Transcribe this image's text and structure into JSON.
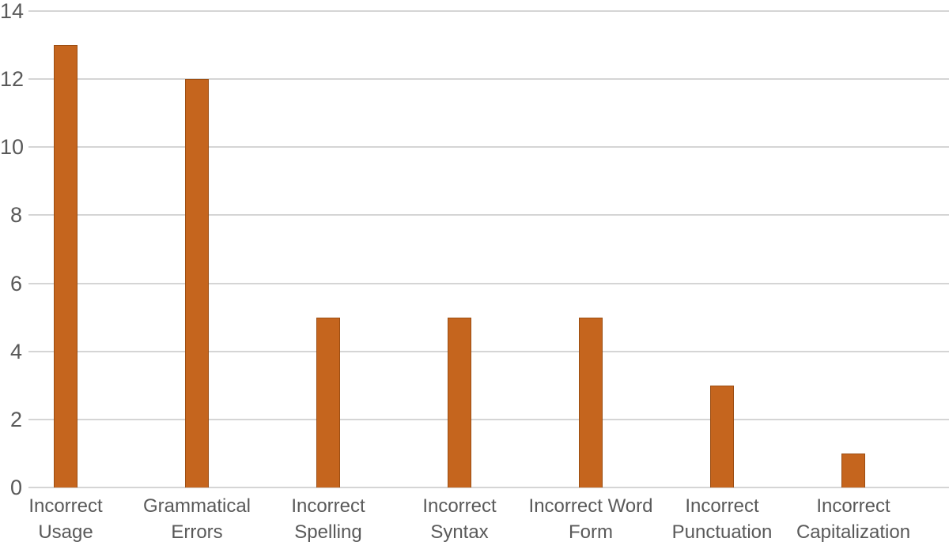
{
  "chart_data": {
    "type": "bar",
    "title": "",
    "xlabel": "",
    "ylabel": "",
    "categories": [
      "Incorrect Usage",
      "Grammatical Errors",
      "Incorrect Spelling",
      "Incorrect Syntax",
      "Incorrect Word Form",
      "Incorrect Punctuation",
      "Incorrect Capitalization"
    ],
    "values": [
      13,
      12,
      5,
      5,
      5,
      3,
      1
    ],
    "ylim": [
      0,
      14
    ],
    "ytick_step": 2,
    "yticks": [
      0,
      2,
      4,
      6,
      8,
      10,
      12,
      14
    ],
    "grid": true,
    "legend": "none",
    "colors": {
      "bar_fill": "#C5651E",
      "bar_border": "#9B4D12",
      "gridline": "#D5D5D5",
      "axis_text": "#595959",
      "background": "#FFFFFF"
    }
  }
}
